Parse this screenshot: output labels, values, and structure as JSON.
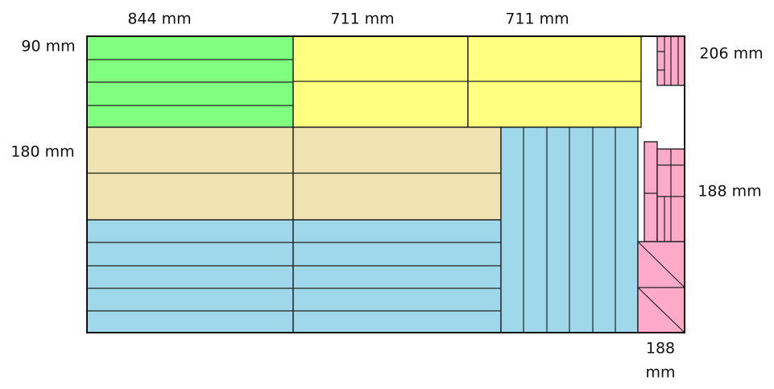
{
  "dimensions": {
    "top": [
      "844 mm",
      "711 mm",
      "711 mm"
    ],
    "left": [
      "90 mm",
      "180 mm"
    ],
    "right": [
      "206 mm",
      "188 mm"
    ],
    "bottom": [
      "188",
      "mm"
    ]
  }
}
